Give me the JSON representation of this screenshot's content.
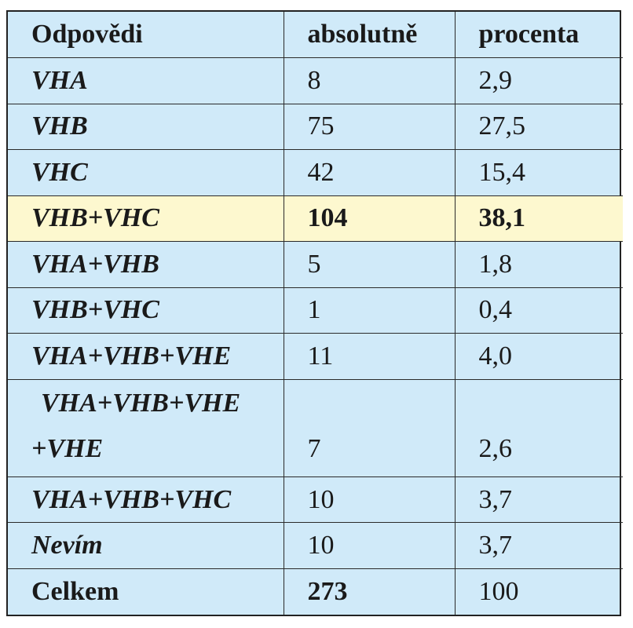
{
  "table": {
    "headers": [
      "Odpovědi",
      "absolutně",
      "procenta"
    ],
    "rows": [
      {
        "answer": "VHA",
        "absolute": "8",
        "percent": "2,9"
      },
      {
        "answer": "VHB",
        "absolute": "75",
        "percent": "27,5"
      },
      {
        "answer": "VHC",
        "absolute": "42",
        "percent": "15,4"
      },
      {
        "answer": "VHB+VHC",
        "absolute": "104",
        "percent": "38,1",
        "highlighted": true
      },
      {
        "answer": "VHA+VHB",
        "absolute": "5",
        "percent": "1,8"
      },
      {
        "answer": "VHB+VHC",
        "absolute": "1",
        "percent": "0,4"
      },
      {
        "answer": "VHA+VHB+VHE",
        "absolute": "11",
        "percent": "4,0"
      },
      {
        "answer_line1": "VHA+VHB+VHE",
        "answer_line2": "+VHE",
        "absolute": "7",
        "percent": "2,6"
      },
      {
        "answer": "VHA+VHB+VHC",
        "absolute": "10",
        "percent": "3,7"
      },
      {
        "answer": "Nevím",
        "absolute": "10",
        "percent": "3,7"
      }
    ],
    "total": {
      "label": "Celkem",
      "absolute": "273",
      "percent": "100"
    }
  },
  "colors": {
    "background": "#d0eaf9",
    "highlight": "#fdf8cf",
    "border": "#2a2a2a"
  }
}
